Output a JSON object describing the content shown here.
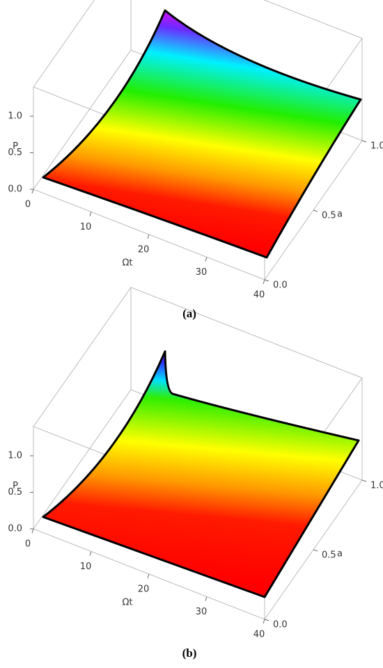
{
  "chart_data": [
    {
      "type": "surface",
      "xlabel": "Ωt",
      "ylabel": "a",
      "zlabel": "P",
      "xlim": [
        0,
        40
      ],
      "ylim": [
        0,
        1
      ],
      "zlim": [
        0,
        1.4
      ],
      "xticks": [
        0,
        10,
        20,
        30,
        40
      ],
      "yticks": [
        {
          "value": 0,
          "label": "0.0"
        },
        0.5,
        {
          "value": 1,
          "label": "1.0"
        }
      ],
      "zticks": [
        {
          "value": 0,
          "label": "0.0"
        },
        0.5,
        {
          "value": 1,
          "label": "1.0"
        }
      ],
      "caption": "(a)"
    },
    {
      "type": "surface",
      "xlabel": "Ωt",
      "ylabel": "a",
      "zlabel": "P",
      "xlim": [
        0,
        40
      ],
      "ylim": [
        0,
        1
      ],
      "zlim": [
        0,
        1.4
      ],
      "xticks": [
        0,
        10,
        20,
        30,
        40
      ],
      "yticks": [
        {
          "value": 0,
          "label": "0.0"
        },
        0.5,
        {
          "value": 1,
          "label": "1.0"
        }
      ],
      "zticks": [
        {
          "value": 0,
          "label": "0.0"
        },
        0.5,
        {
          "value": 1,
          "label": "1.0"
        }
      ],
      "caption": "(b)"
    }
  ]
}
